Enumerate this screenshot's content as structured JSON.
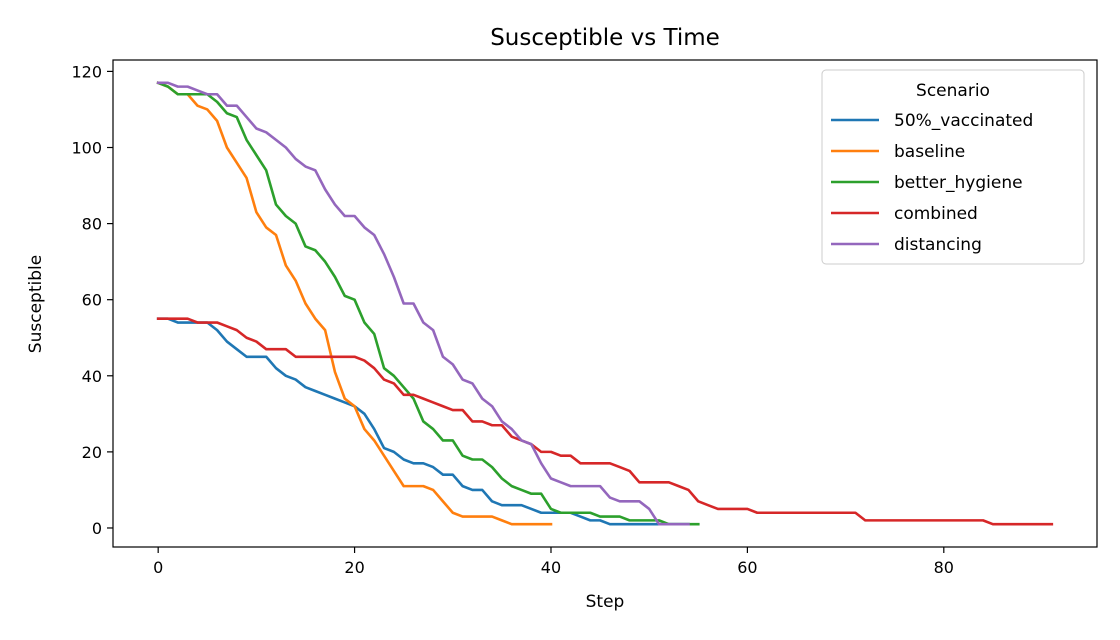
{
  "chart_data": {
    "type": "line",
    "title": "Susceptible vs Time",
    "xlabel": "Step",
    "ylabel": "Susceptible",
    "xlim": [
      -4.6,
      95.6
    ],
    "ylim": [
      -5,
      123
    ],
    "xticks": [
      0,
      20,
      40,
      60,
      80
    ],
    "yticks": [
      0,
      20,
      40,
      60,
      80,
      100,
      120
    ],
    "grid": false,
    "legend": {
      "title": "Scenario",
      "placement": "top-right"
    },
    "series": [
      {
        "name": "50%_vaccinated",
        "color": "#1f77b4",
        "x": [
          0,
          1,
          2,
          3,
          4,
          5,
          6,
          7,
          8,
          9,
          10,
          11,
          12,
          13,
          14,
          15,
          16,
          17,
          18,
          19,
          20,
          21,
          22,
          23,
          24,
          25,
          26,
          27,
          28,
          29,
          30,
          31,
          32,
          33,
          34,
          35,
          36,
          37,
          38,
          39,
          40,
          41,
          42,
          43,
          44,
          45,
          46,
          47,
          48,
          49,
          50,
          51,
          52,
          53,
          54
        ],
        "y": [
          55,
          55,
          54,
          54,
          54,
          54,
          52,
          49,
          47,
          45,
          45,
          45,
          42,
          40,
          39,
          37,
          36,
          35,
          34,
          33,
          32,
          30,
          26,
          21,
          20,
          18,
          17,
          17,
          16,
          14,
          14,
          11,
          10,
          10,
          7,
          6,
          6,
          6,
          5,
          4,
          4,
          4,
          4,
          3,
          2,
          2,
          1,
          1,
          1,
          1,
          1,
          1,
          1,
          1,
          1
        ]
      },
      {
        "name": "baseline",
        "color": "#ff7f0e",
        "x": [
          0,
          1,
          2,
          3,
          4,
          5,
          6,
          7,
          8,
          9,
          10,
          11,
          12,
          13,
          14,
          15,
          16,
          17,
          18,
          19,
          20,
          21,
          22,
          23,
          24,
          25,
          26,
          27,
          28,
          29,
          30,
          31,
          32,
          33,
          34,
          35,
          36,
          37,
          38,
          39,
          40
        ],
        "y": [
          117,
          116,
          114,
          114,
          111,
          110,
          107,
          100,
          96,
          92,
          83,
          79,
          77,
          69,
          65,
          59,
          55,
          52,
          41,
          34,
          32,
          26,
          23,
          19,
          15,
          11,
          11,
          11,
          10,
          7,
          4,
          3,
          3,
          3,
          3,
          2,
          1,
          1,
          1,
          1,
          1
        ]
      },
      {
        "name": "better_hygiene",
        "color": "#2ca02c",
        "x": [
          0,
          1,
          2,
          3,
          4,
          5,
          6,
          7,
          8,
          9,
          10,
          11,
          12,
          13,
          14,
          15,
          16,
          17,
          18,
          19,
          20,
          21,
          22,
          23,
          24,
          25,
          26,
          27,
          28,
          29,
          30,
          31,
          32,
          33,
          34,
          35,
          36,
          37,
          38,
          39,
          40,
          41,
          42,
          43,
          44,
          45,
          46,
          47,
          48,
          49,
          50,
          51,
          52,
          53,
          54,
          55
        ],
        "y": [
          117,
          116,
          114,
          114,
          114,
          114,
          112,
          109,
          108,
          102,
          98,
          94,
          85,
          82,
          80,
          74,
          73,
          70,
          66,
          61,
          60,
          54,
          51,
          42,
          40,
          37,
          34,
          28,
          26,
          23,
          23,
          19,
          18,
          18,
          16,
          13,
          11,
          10,
          9,
          9,
          5,
          4,
          4,
          4,
          4,
          3,
          3,
          3,
          2,
          2,
          2,
          2,
          1,
          1,
          1,
          1
        ]
      },
      {
        "name": "combined",
        "color": "#d62728",
        "x": [
          0,
          1,
          2,
          3,
          4,
          5,
          6,
          7,
          8,
          9,
          10,
          11,
          12,
          13,
          14,
          15,
          16,
          17,
          18,
          19,
          20,
          21,
          22,
          23,
          24,
          25,
          26,
          27,
          28,
          29,
          30,
          31,
          32,
          33,
          34,
          35,
          36,
          37,
          38,
          39,
          40,
          41,
          42,
          43,
          44,
          45,
          46,
          47,
          48,
          49,
          50,
          51,
          52,
          53,
          54,
          55,
          56,
          57,
          58,
          59,
          60,
          61,
          62,
          63,
          64,
          65,
          66,
          67,
          68,
          69,
          70,
          71,
          72,
          73,
          74,
          75,
          76,
          77,
          78,
          79,
          80,
          81,
          82,
          83,
          84,
          85,
          86,
          87,
          88,
          89,
          90,
          91
        ],
        "y": [
          55,
          55,
          55,
          55,
          54,
          54,
          54,
          53,
          52,
          50,
          49,
          47,
          47,
          47,
          45,
          45,
          45,
          45,
          45,
          45,
          45,
          44,
          42,
          39,
          38,
          35,
          35,
          34,
          33,
          32,
          31,
          31,
          28,
          28,
          27,
          27,
          24,
          23,
          22,
          20,
          20,
          19,
          19,
          17,
          17,
          17,
          17,
          16,
          15,
          12,
          12,
          12,
          12,
          11,
          10,
          7,
          6,
          5,
          5,
          5,
          5,
          4,
          4,
          4,
          4,
          4,
          4,
          4,
          4,
          4,
          4,
          4,
          2,
          2,
          2,
          2,
          2,
          2,
          2,
          2,
          2,
          2,
          2,
          2,
          2,
          1,
          1,
          1,
          1,
          1,
          1,
          1
        ]
      },
      {
        "name": "distancing",
        "color": "#9467bd",
        "x": [
          0,
          1,
          2,
          3,
          4,
          5,
          6,
          7,
          8,
          9,
          10,
          11,
          12,
          13,
          14,
          15,
          16,
          17,
          18,
          19,
          20,
          21,
          22,
          23,
          24,
          25,
          26,
          27,
          28,
          29,
          30,
          31,
          32,
          33,
          34,
          35,
          36,
          37,
          38,
          39,
          40,
          41,
          42,
          43,
          44,
          45,
          46,
          47,
          48,
          49,
          50,
          51,
          52,
          53,
          54
        ],
        "y": [
          117,
          117,
          116,
          116,
          115,
          114,
          114,
          111,
          111,
          108,
          105,
          104,
          102,
          100,
          97,
          95,
          94,
          89,
          85,
          82,
          82,
          79,
          77,
          72,
          66,
          59,
          59,
          54,
          52,
          45,
          43,
          39,
          38,
          34,
          32,
          28,
          26,
          23,
          22,
          17,
          13,
          12,
          11,
          11,
          11,
          11,
          8,
          7,
          7,
          7,
          5,
          1,
          1,
          1,
          1
        ]
      }
    ]
  }
}
